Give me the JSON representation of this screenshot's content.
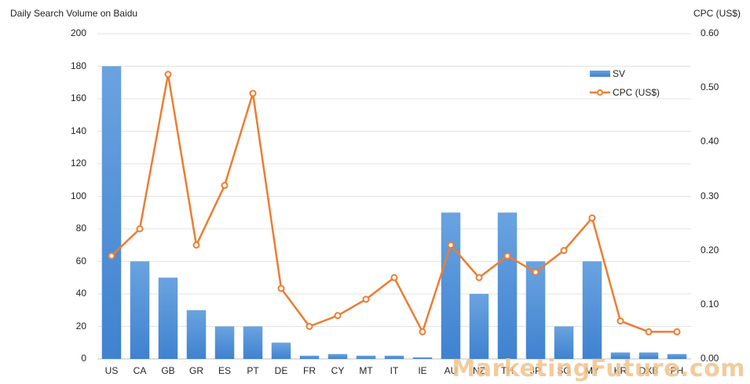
{
  "chart_data": {
    "type": "bar",
    "left_axis_title": "Daily Search Volume on Baidu",
    "right_axis_title": "CPC (US$)",
    "categories": [
      "US",
      "CA",
      "GB",
      "GR",
      "ES",
      "PT",
      "DE",
      "FR",
      "CY",
      "MT",
      "IT",
      "IE",
      "AU",
      "NZ",
      "TH",
      "JP",
      "SG",
      "MY",
      "KR",
      "DXB",
      "PH"
    ],
    "series": [
      {
        "name": "SV",
        "type": "bar",
        "axis": "left",
        "color": "#4f8fd6",
        "values": [
          180,
          60,
          50,
          30,
          20,
          20,
          10,
          2,
          3,
          2,
          2,
          1,
          90,
          40,
          90,
          60,
          20,
          60,
          4,
          4,
          3
        ]
      },
      {
        "name": "CPC (US$)",
        "type": "line",
        "axis": "right",
        "color": "#ed7d31",
        "values": [
          0.19,
          0.24,
          0.525,
          0.21,
          0.32,
          0.49,
          0.13,
          0.06,
          0.08,
          0.11,
          0.15,
          0.05,
          0.21,
          0.15,
          0.19,
          0.16,
          0.2,
          0.26,
          0.07,
          0.05,
          0.05
        ]
      }
    ],
    "left_ylim": [
      0,
      200
    ],
    "left_ticks": [
      "0",
      "20",
      "40",
      "60",
      "80",
      "100",
      "120",
      "140",
      "160",
      "180",
      "200"
    ],
    "right_ylim": [
      0,
      0.6
    ],
    "right_ticks": [
      "0.00",
      "0.10",
      "0.20",
      "0.30",
      "0.40",
      "0.50",
      "0.60"
    ],
    "grid": true,
    "legend": "top-right"
  },
  "watermark": "MarketingFuture.com"
}
